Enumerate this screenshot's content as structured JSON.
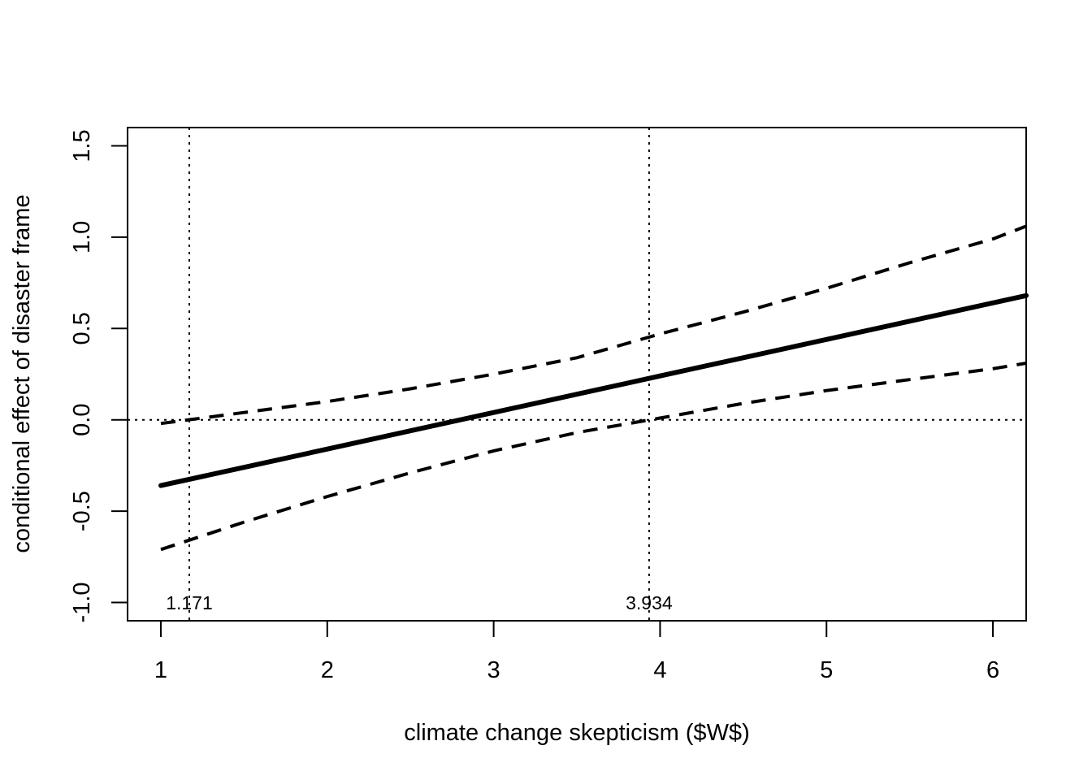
{
  "chart_data": {
    "type": "line",
    "title": "",
    "xlabel": "climate change skepticism ($W$)",
    "ylabel": "conditional effect of disaster frame",
    "xlim": [
      0.8,
      6.2
    ],
    "ylim": [
      -1.1,
      1.6
    ],
    "x_ticks": [
      "1",
      "2",
      "3",
      "4",
      "5",
      "6"
    ],
    "y_ticks": [
      "-1.0",
      "-0.5",
      "0.0",
      "0.5",
      "1.0",
      "1.5"
    ],
    "grid": false,
    "legend": "none",
    "reference_lines": {
      "horizontal": [
        0.0
      ],
      "vertical": [
        1.171,
        3.934
      ]
    },
    "vertical_line_labels": [
      "1.171",
      "3.934"
    ],
    "x": [
      1.0,
      1.5,
      2.0,
      2.5,
      3.0,
      3.5,
      4.0,
      4.5,
      5.0,
      5.5,
      6.0,
      6.2
    ],
    "series": [
      {
        "style": "solid-thick",
        "values": [
          -0.36,
          -0.26,
          -0.16,
          -0.06,
          0.04,
          0.14,
          0.24,
          0.34,
          0.44,
          0.54,
          0.64,
          0.68
        ]
      },
      {
        "style": "dashed",
        "values": [
          -0.02,
          0.04,
          0.1,
          0.17,
          0.25,
          0.34,
          0.47,
          0.59,
          0.72,
          0.86,
          0.99,
          1.06
        ]
      },
      {
        "style": "dashed",
        "values": [
          -0.71,
          -0.56,
          -0.42,
          -0.29,
          -0.17,
          -0.07,
          0.01,
          0.09,
          0.16,
          0.22,
          0.28,
          0.31
        ]
      }
    ]
  }
}
